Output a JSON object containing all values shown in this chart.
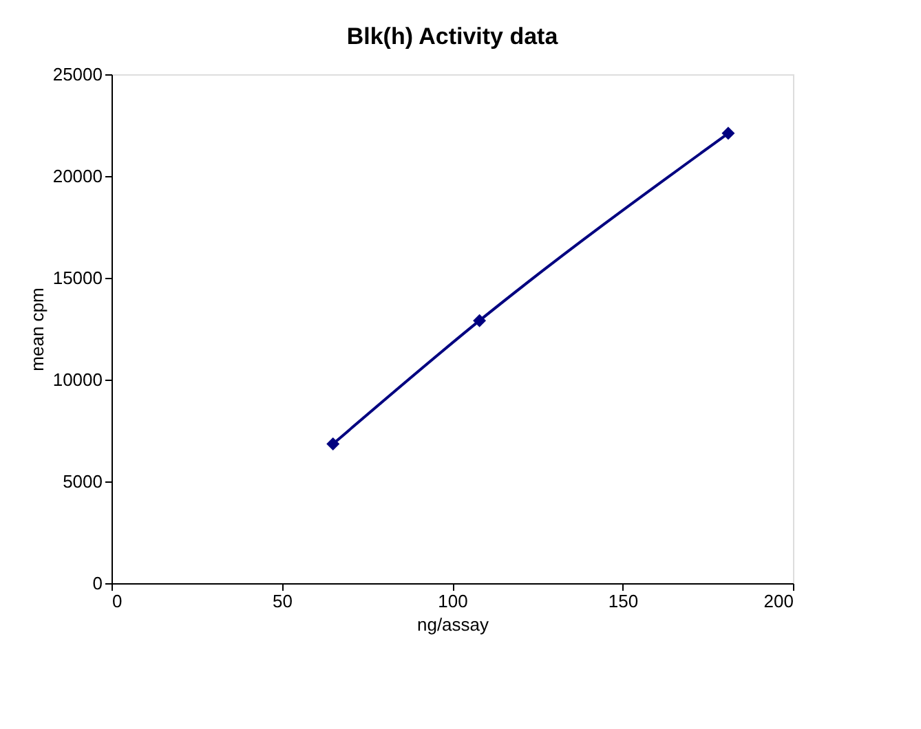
{
  "chart_data": {
    "type": "line",
    "title": "Blk(h) Activity data",
    "xlabel": "ng/assay",
    "ylabel": "mean cpm",
    "x": [
      65,
      108,
      181
    ],
    "series": [
      {
        "color": "#000080",
        "values": [
          6840,
          12900,
          22100
        ]
      }
    ],
    "xlim": [
      0,
      200
    ],
    "xticks": [
      0,
      50,
      100,
      150,
      200
    ],
    "ylim": [
      0,
      25000
    ],
    "yticks": [
      0,
      5000,
      10000,
      15000,
      20000,
      25000
    ],
    "grid": false,
    "marker": "diamond",
    "line_style": "solid"
  }
}
